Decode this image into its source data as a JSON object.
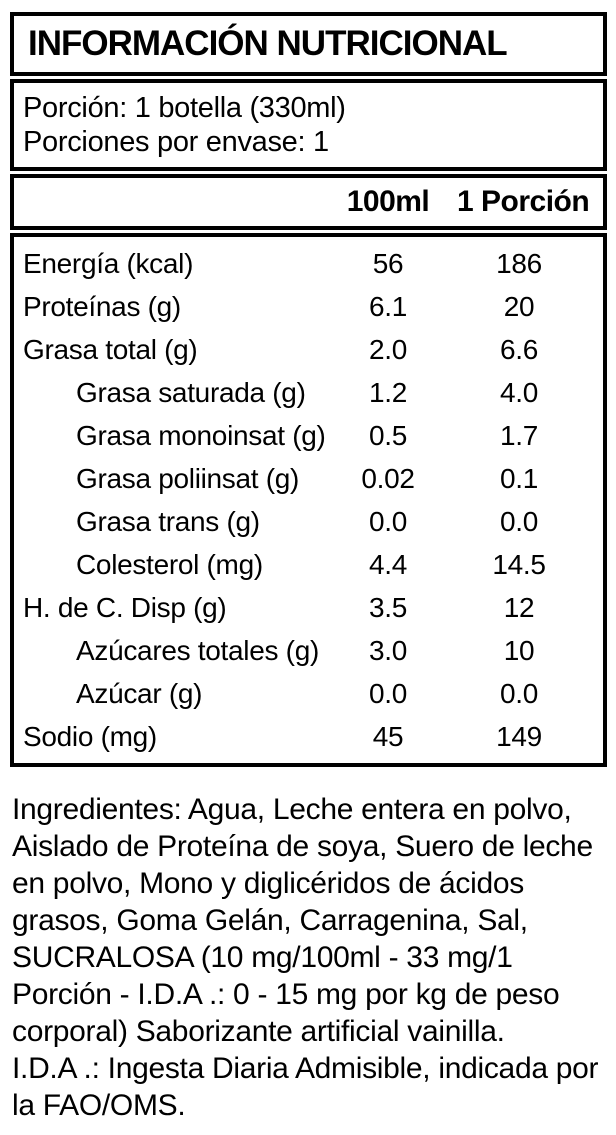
{
  "label": {
    "title": "INFORMACIÓN NUTRICIONAL",
    "serving": {
      "portion_line": "Porción: 1 botella (330ml)",
      "per_container_line": "Porciones por envase: 1"
    },
    "columns": {
      "per_100ml": "100ml",
      "per_portion": "1 Porción"
    },
    "rows": [
      {
        "label": "Energía (kcal)",
        "per_100ml": "56",
        "per_portion": "186",
        "indent": false
      },
      {
        "label": "Proteínas (g)",
        "per_100ml": "6.1",
        "per_portion": "20",
        "indent": false
      },
      {
        "label": "Grasa total (g)",
        "per_100ml": "2.0",
        "per_portion": "6.6",
        "indent": false
      },
      {
        "label": "Grasa saturada (g)",
        "per_100ml": "1.2",
        "per_portion": "4.0",
        "indent": true
      },
      {
        "label": "Grasa monoinsat (g)",
        "per_100ml": "0.5",
        "per_portion": "1.7",
        "indent": true
      },
      {
        "label": "Grasa poliinsat (g)",
        "per_100ml": "0.02",
        "per_portion": "0.1",
        "indent": true
      },
      {
        "label": "Grasa trans (g)",
        "per_100ml": "0.0",
        "per_portion": "0.0",
        "indent": true
      },
      {
        "label": "Colesterol (mg)",
        "per_100ml": "4.4",
        "per_portion": "14.5",
        "indent": true
      },
      {
        "label": "H. de C. Disp (g)",
        "per_100ml": "3.5",
        "per_portion": "12",
        "indent": false
      },
      {
        "label": "Azúcares totales (g)",
        "per_100ml": "3.0",
        "per_portion": "10",
        "indent": true
      },
      {
        "label": "Azúcar (g)",
        "per_100ml": "0.0",
        "per_portion": "0.0",
        "indent": true
      },
      {
        "label": "Sodio (mg)",
        "per_100ml": "45",
        "per_portion": "149",
        "indent": false
      }
    ]
  },
  "ingredients": {
    "text": "Ingredientes: Agua, Leche entera en polvo, Aislado de Proteína de soya, Suero de leche en polvo, Mono y diglicéridos de ácidos grasos, Goma Gelán, Carragenina, Sal, SUCRALOSA (10 mg/100ml - 33 mg/1 Porción - I.D.A .: 0 - 15 mg por kg de peso corporal) Saborizante artificial vainilla.",
    "ida_note": "I.D.A .: Ingesta Diaria Admisible, indicada por la FAO/OMS."
  },
  "colors": {
    "text": "#000000",
    "border": "#000000",
    "background": "#ffffff"
  }
}
